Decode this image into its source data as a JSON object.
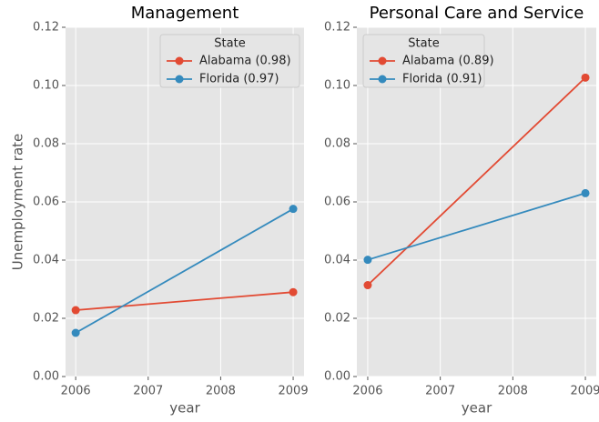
{
  "chart_data": [
    {
      "type": "line",
      "title": "Management",
      "xlabel": "year",
      "ylabel": "Unemployment rate",
      "x": [
        2006,
        2009
      ],
      "series": [
        {
          "name": "Alabama (0.98)",
          "color": "#E24A33",
          "values": [
            0.0228,
            0.029
          ]
        },
        {
          "name": "Florida (0.97)",
          "color": "#348ABD",
          "values": [
            0.015,
            0.0576
          ]
        }
      ],
      "xlim": [
        2005.86,
        2009.15
      ],
      "ylim": [
        0,
        0.12
      ],
      "xticks": [
        2006,
        2007,
        2008,
        2009
      ],
      "yticks": [
        {
          "value": 0,
          "label": "0.00"
        },
        {
          "value": 0.02,
          "label": "0.02"
        },
        {
          "value": 0.04,
          "label": "0.04"
        },
        {
          "value": 0.06,
          "label": "0.06"
        },
        {
          "value": 0.08,
          "label": "0.08"
        },
        {
          "value": 0.1,
          "label": "0.10"
        },
        {
          "value": 0.12,
          "label": "0.12"
        }
      ],
      "grid": true,
      "legend_title": "State",
      "legend": "upper right"
    },
    {
      "type": "line",
      "title": "Personal Care and Service",
      "xlabel": "year",
      "x": [
        2006,
        2009
      ],
      "series": [
        {
          "name": "Alabama (0.89)",
          "color": "#E24A33",
          "values": [
            0.0314,
            0.1027
          ]
        },
        {
          "name": "Florida (0.91)",
          "color": "#348ABD",
          "values": [
            0.0401,
            0.063
          ]
        }
      ],
      "xlim": [
        2005.85,
        2009.15
      ],
      "ylim": [
        0,
        0.12
      ],
      "xticks": [
        2006,
        2007,
        2008,
        2009
      ],
      "yticks": [
        {
          "value": 0,
          "label": "0.00"
        },
        {
          "value": 0.02,
          "label": "0.02"
        },
        {
          "value": 0.04,
          "label": "0.04"
        },
        {
          "value": 0.06,
          "label": "0.06"
        },
        {
          "value": 0.08,
          "label": "0.08"
        },
        {
          "value": 0.1,
          "label": "0.10"
        },
        {
          "value": 0.12,
          "label": "0.12"
        }
      ],
      "grid": true,
      "legend_title": "State",
      "legend": "upper left"
    }
  ]
}
